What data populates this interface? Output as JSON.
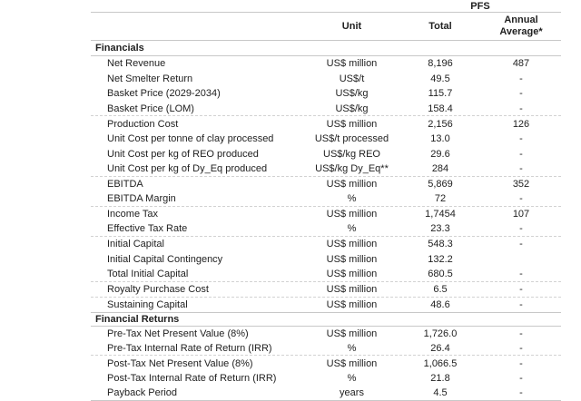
{
  "table": {
    "group_header": "PFS",
    "columns": {
      "unit": "Unit",
      "total": "Total",
      "annual": "Annual Average*"
    },
    "sections": [
      {
        "title": "Financials",
        "rows": [
          {
            "label": "Net Revenue",
            "unit": "US$ million",
            "total": "8,196",
            "annual": "487"
          },
          {
            "label": "Net Smelter Return",
            "unit": "US$/t",
            "total": "49.5",
            "annual": "-"
          },
          {
            "label": "Basket Price (2029-2034)",
            "unit": "US$/kg",
            "total": "115.7",
            "annual": "-"
          },
          {
            "label": "Basket Price (LOM)",
            "unit": "US$/kg",
            "total": "158.4",
            "annual": "-"
          },
          {
            "label": "Production Cost",
            "unit": "US$ million",
            "total": "2,156",
            "annual": "126"
          },
          {
            "label": "Unit Cost per tonne of clay processed",
            "unit": "US$/t processed",
            "total": "13.0",
            "annual": "-"
          },
          {
            "label": "Unit Cost per kg of REO produced",
            "unit": "US$/kg REO",
            "total": "29.6",
            "annual": "-"
          },
          {
            "label": "Unit Cost per kg of Dy_Eq produced",
            "unit": "US$/kg Dy_Eq**",
            "total": "284",
            "annual": "-"
          },
          {
            "label": "EBITDA",
            "unit": "US$ million",
            "total": "5,869",
            "annual": "352"
          },
          {
            "label": "EBITDA Margin",
            "unit": "%",
            "total": "72",
            "annual": "-"
          },
          {
            "label": "Income Tax",
            "unit": "US$ million",
            "total": "1,7454",
            "annual": "107"
          },
          {
            "label": "Effective Tax Rate",
            "unit": "%",
            "total": "23.3",
            "annual": "-"
          },
          {
            "label": "Initial Capital",
            "unit": "US$ million",
            "total": "548.3",
            "annual": "-"
          },
          {
            "label": "Initial Capital Contingency",
            "unit": "US$ million",
            "total": "132.2",
            "annual": ""
          },
          {
            "label": "Total Initial Capital",
            "unit": "US$ million",
            "total": "680.5",
            "annual": "-"
          },
          {
            "label": "Royalty Purchase Cost",
            "unit": "US$ million",
            "total": "6.5",
            "annual": "-"
          },
          {
            "label": "Sustaining Capital",
            "unit": "US$ million",
            "total": "48.6",
            "annual": "-"
          }
        ]
      },
      {
        "title": "Financial Returns",
        "rows": [
          {
            "label": "Pre-Tax Net Present Value (8%)",
            "unit": "US$ million",
            "total": "1,726.0",
            "annual": "-"
          },
          {
            "label": "Pre-Tax Internal Rate of Return (IRR)",
            "unit": "%",
            "total": "26.4",
            "annual": "-"
          },
          {
            "label": "Post-Tax Net Present Value (8%)",
            "unit": "US$ million",
            "total": "1,066.5",
            "annual": "-"
          },
          {
            "label": "Post-Tax Internal Rate of Return (IRR)",
            "unit": "%",
            "total": "21.8",
            "annual": "-"
          },
          {
            "label": "Payback Period",
            "unit": "years",
            "total": "4.5",
            "annual": "-"
          }
        ]
      }
    ]
  }
}
